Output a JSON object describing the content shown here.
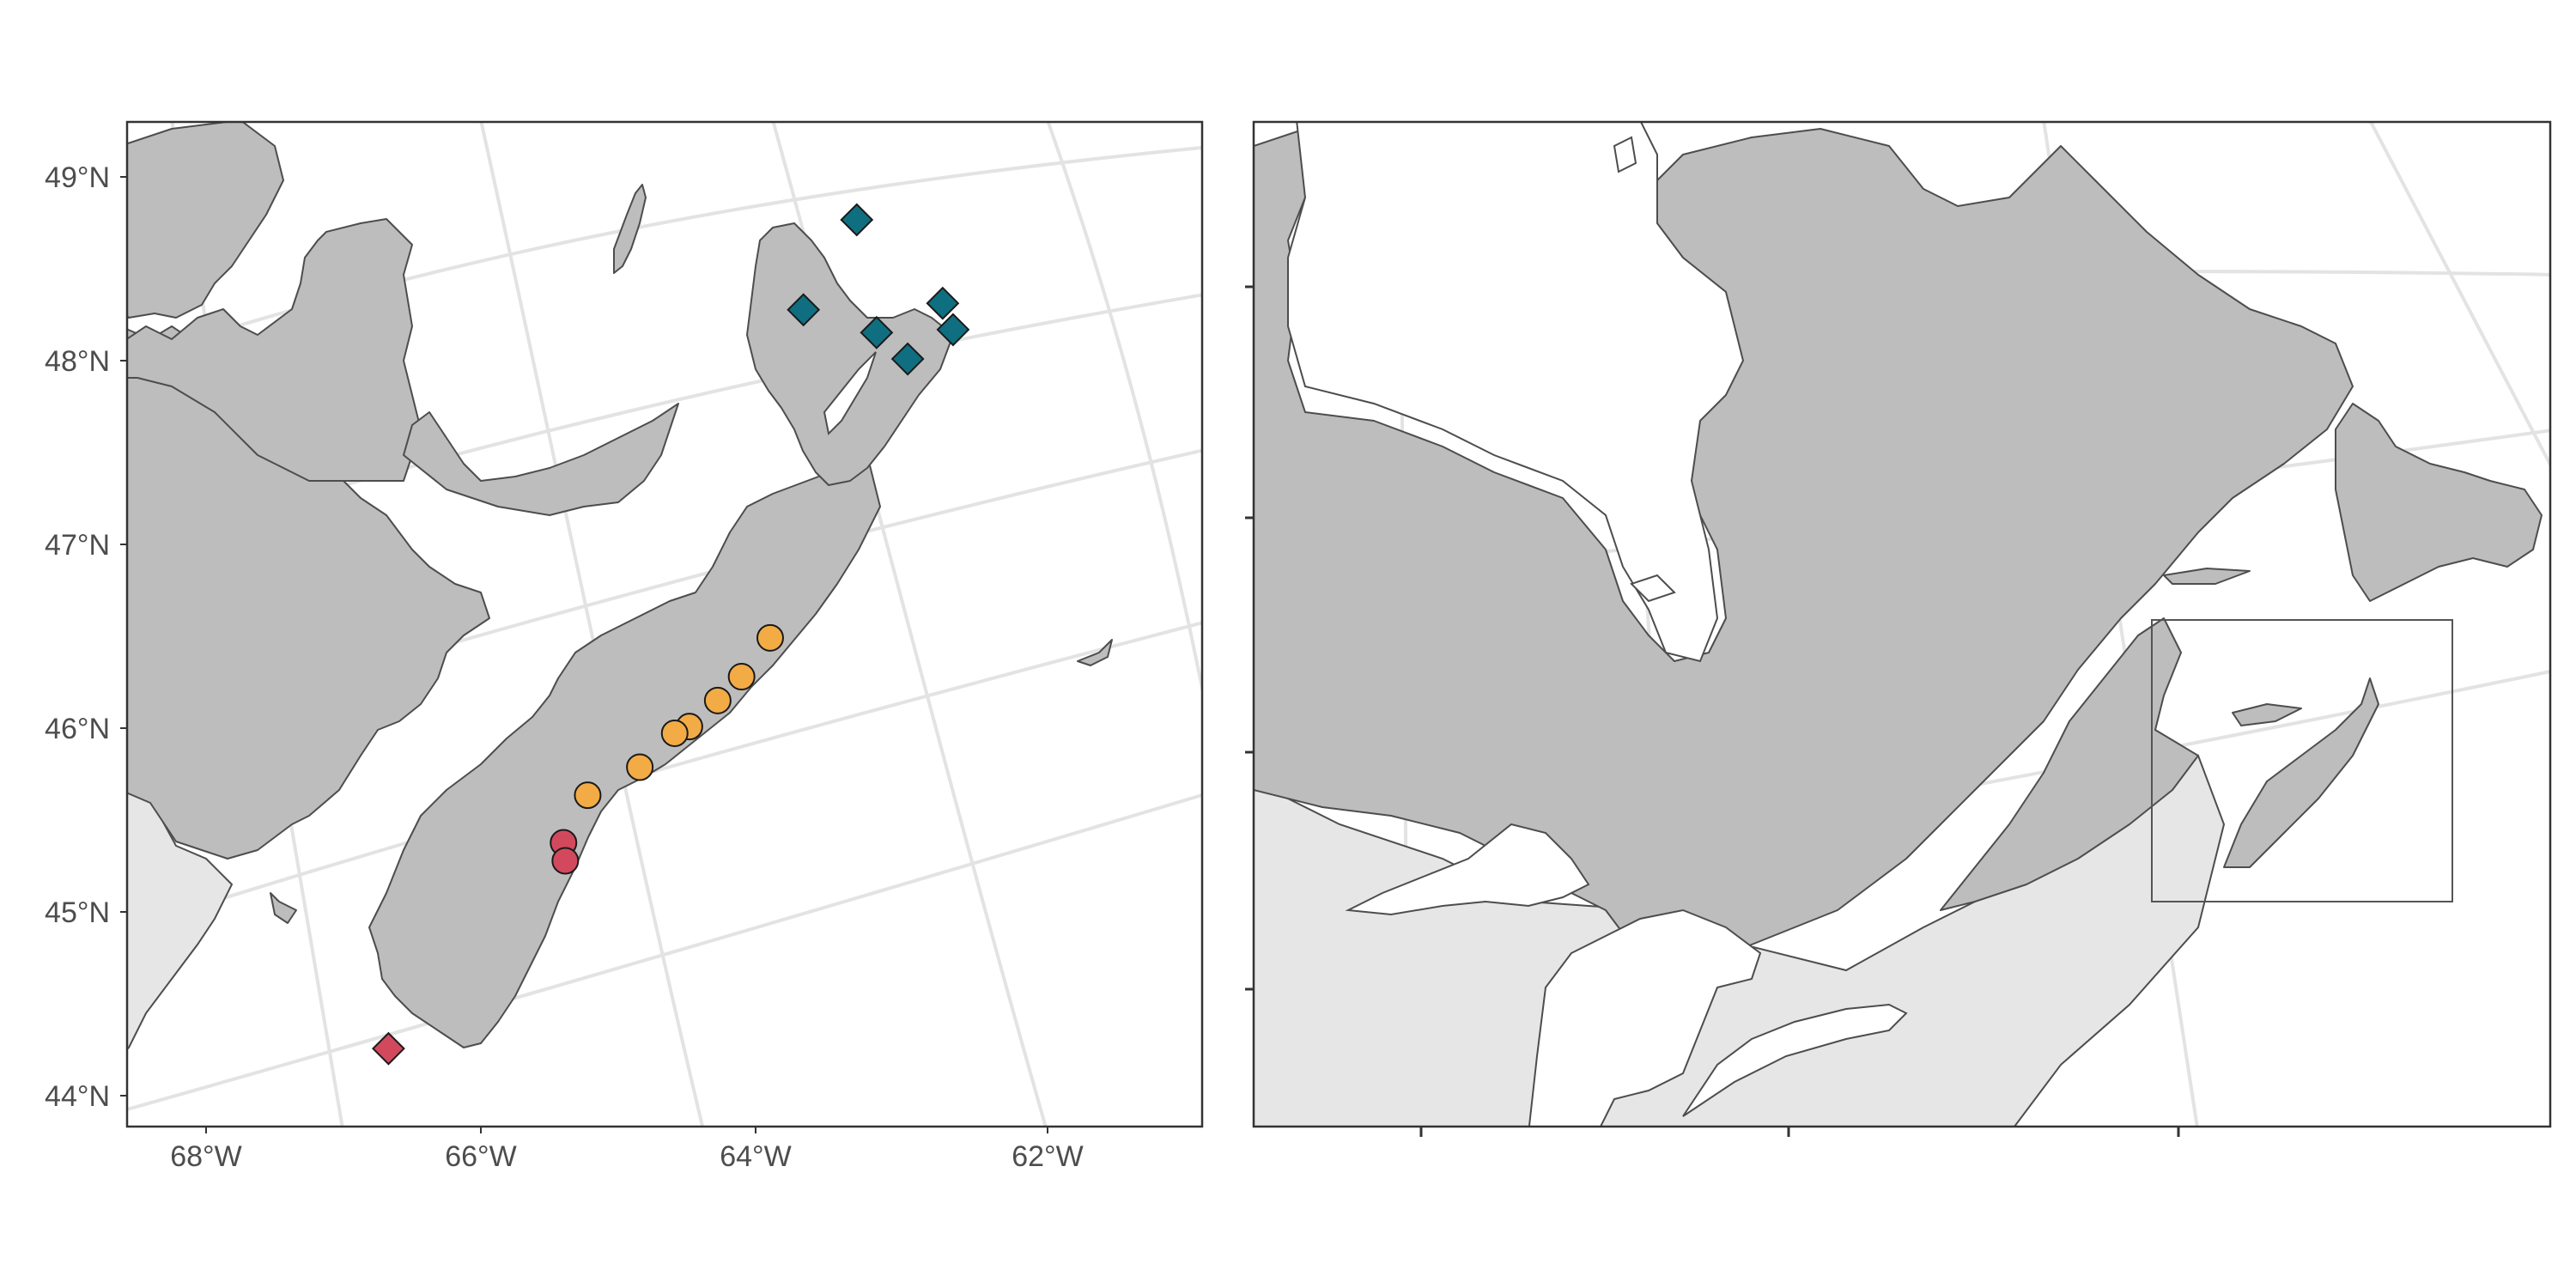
{
  "left_map": {
    "lat_ticks": [
      "49°N",
      "48°N",
      "47°N",
      "46°N",
      "45°N",
      "44°N"
    ],
    "lon_ticks": [
      "68°W",
      "66°W",
      "64°W",
      "62°W"
    ]
  },
  "right_map": {
    "lat_ticks": [
      "",
      "",
      "",
      ""
    ],
    "lon_ticks": [
      "",
      "",
      ""
    ]
  },
  "colors": {
    "land": "#bdbdbd",
    "us_land": "#e6e6e6",
    "water": "#ffffff",
    "graticule": "#e3e3e3",
    "site_teal": "#0f6f80",
    "site_orange": "#f2ab45",
    "site_red": "#d2495e"
  },
  "sites": {
    "teal_diamonds": [
      {
        "lon": -63.75,
        "lat": 48.75
      },
      {
        "lon": -64.05,
        "lat": 48.28
      },
      {
        "lon": -63.5,
        "lat": 48.12
      },
      {
        "lon": -63.05,
        "lat": 48.25
      },
      {
        "lon": -62.95,
        "lat": 48.1
      },
      {
        "lon": -63.25,
        "lat": 47.96
      }
    ],
    "orange_circles": [
      {
        "lon": -63.98,
        "lat": 46.49
      },
      {
        "lon": -64.15,
        "lat": 46.29
      },
      {
        "lon": -64.3,
        "lat": 46.17
      },
      {
        "lon": -64.48,
        "lat": 46.04
      },
      {
        "lon": -64.58,
        "lat": 46.01
      },
      {
        "lon": -64.8,
        "lat": 45.84
      },
      {
        "lon": -65.15,
        "lat": 45.71
      }
    ],
    "red_circles": [
      {
        "lon": -65.28,
        "lat": 45.46
      },
      {
        "lon": -65.25,
        "lat": 45.36
      }
    ],
    "red_diamonds": [
      {
        "lon": -66.35,
        "lat": 44.41
      }
    ]
  }
}
